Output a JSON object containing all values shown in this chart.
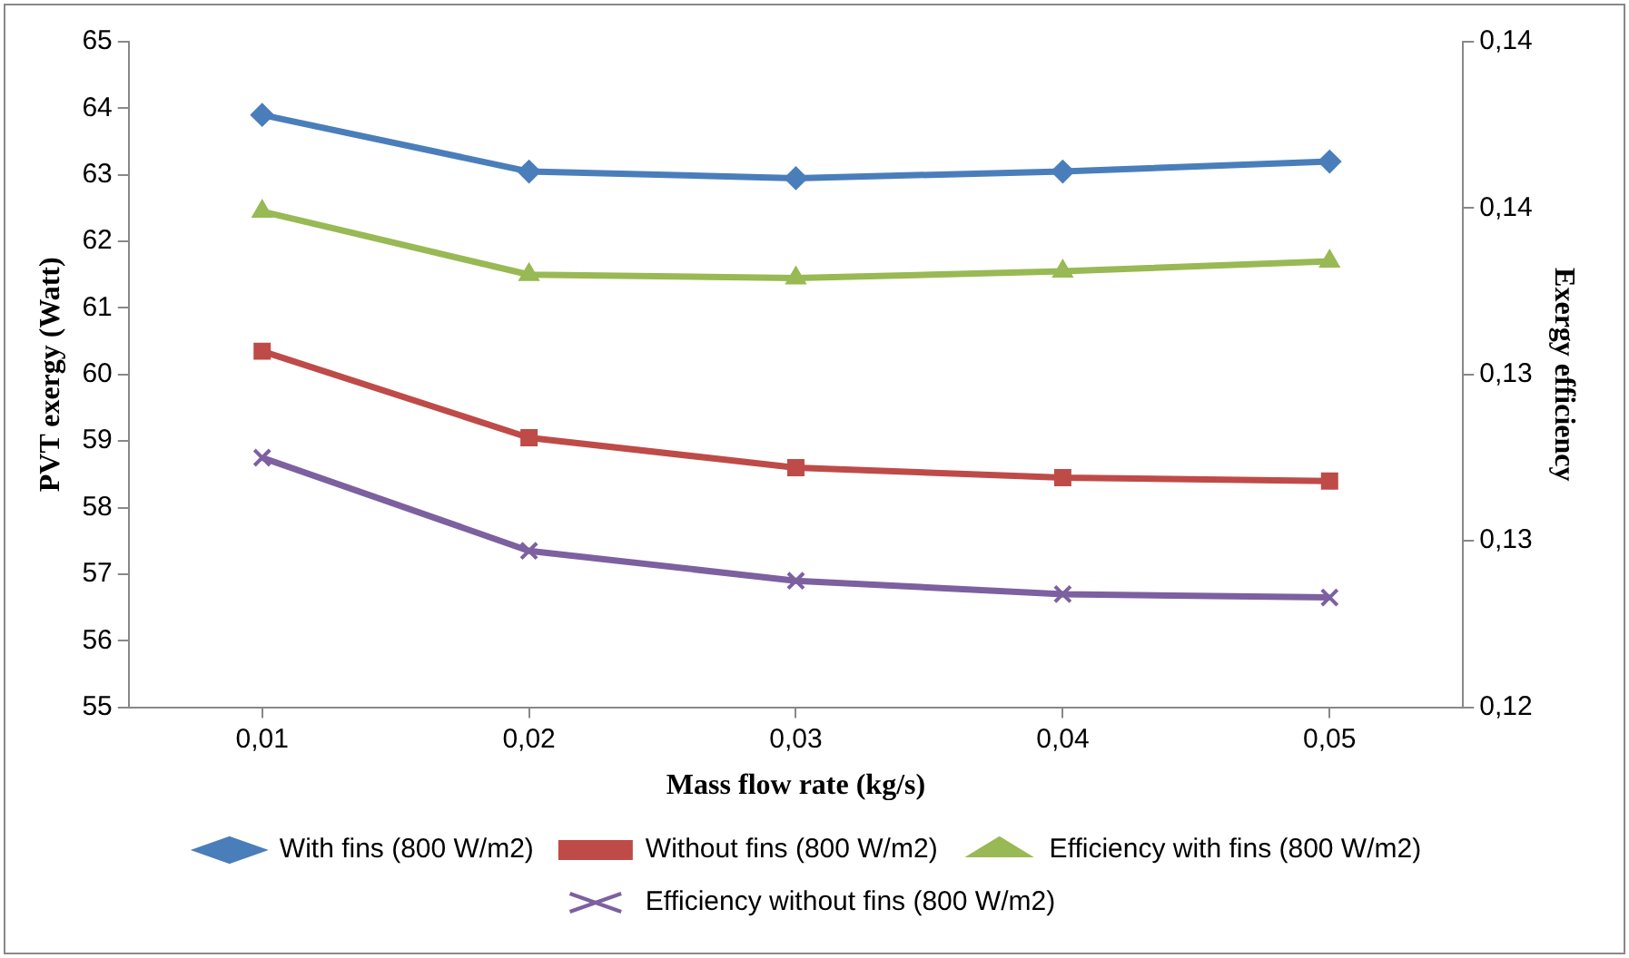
{
  "chart_data": {
    "type": "line",
    "xlabel": "Mass flow rate (kg/s)",
    "ylabel": "PVT exergy (Watt)",
    "y2label": "Exergy efficiency",
    "categories": [
      "0,01",
      "0,02",
      "0,03",
      "0,04",
      "0,05"
    ],
    "ylim": [
      55,
      65
    ],
    "yticks": [
      55,
      56,
      57,
      58,
      59,
      60,
      61,
      62,
      63,
      64,
      65
    ],
    "y2lim": [
      0.12,
      0.14
    ],
    "y2ticks": [
      {
        "value": 0.12,
        "label": "0,12"
      },
      {
        "value": 0.125,
        "label": "0,13"
      },
      {
        "value": 0.13,
        "label": "0,13"
      },
      {
        "value": 0.135,
        "label": "0,14"
      },
      {
        "value": 0.14,
        "label": "0,14"
      }
    ],
    "grid": false,
    "legend": "bottom",
    "line_style": "solid",
    "series": [
      {
        "name": "With fins (800 W/m2)",
        "color": "#4a7ebb",
        "marker": "diamond",
        "values": [
          63.9,
          63.05,
          62.95,
          63.05,
          63.2
        ]
      },
      {
        "name": "Without fins (800 W/m2)",
        "color": "#be4b48",
        "marker": "square",
        "values": [
          60.35,
          59.05,
          58.6,
          58.45,
          58.4
        ]
      },
      {
        "name": "Efficiency with fins (800 W/m2)",
        "color": "#98b954",
        "marker": "triangle",
        "axis": "y2",
        "values": [
          0.1349,
          0.133,
          0.1329,
          0.1331,
          0.1334
        ]
      },
      {
        "name": "Efficiency without fins (800 W/m2)",
        "color": "#7d60a0",
        "marker": "cross",
        "axis": "y2",
        "values": [
          0.1275,
          0.1247,
          0.1238,
          0.1234,
          0.1233
        ]
      }
    ]
  }
}
